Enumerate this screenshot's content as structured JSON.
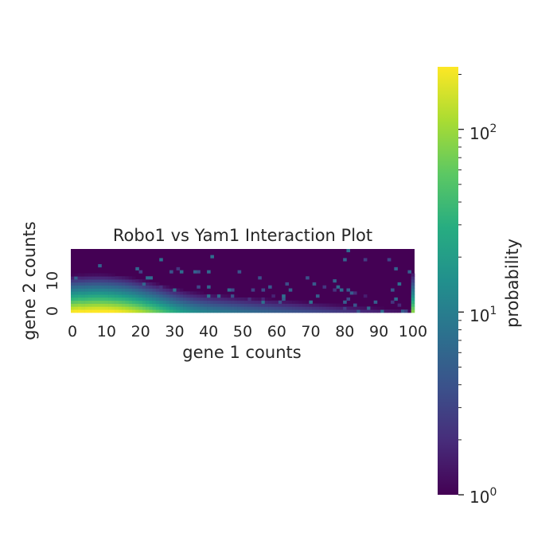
{
  "chart_data": {
    "type": "heatmap",
    "title": "Robo1 vs Yam1 Interaction Plot",
    "xlabel": "gene 1 counts",
    "ylabel": "gene 2 counts",
    "xlim": [
      0,
      100
    ],
    "ylim": [
      0,
      20
    ],
    "x_ticks": [
      "0",
      "10",
      "20",
      "30",
      "40",
      "50",
      "60",
      "70",
      "80",
      "90",
      "100"
    ],
    "y_ticks": [
      "0",
      "10"
    ],
    "colorbar": {
      "label": "probability",
      "scale": "log",
      "colormap": "viridis",
      "range": [
        1,
        220
      ],
      "tick_labels": [
        {
          "base": "10",
          "exp": "0"
        },
        {
          "base": "10",
          "exp": "1"
        },
        {
          "base": "10",
          "exp": "2"
        }
      ]
    },
    "description_of_values": "Highest density (~200) near gene 1 counts 3-15 and gene 2 counts 0-2; density decays with increasing gene 2 counts and with gene 1 counts beyond ~20; sparse scattered counts elsewhere; bright column at gene 1 = 100."
  },
  "colors": {
    "background": "#ffffff",
    "text": "#262626",
    "colormap_low": "#440154",
    "colormap_high": "#fde725"
  }
}
